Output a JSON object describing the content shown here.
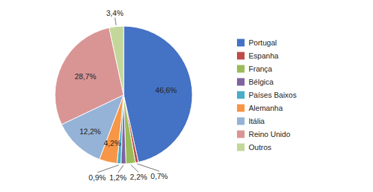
{
  "chart_data": {
    "type": "pie",
    "categories": [
      "Portugal",
      "Espanha",
      "França",
      "Bélgica",
      "Países Baixos",
      "Alemanha",
      "Itália",
      "Reino Unido",
      "Outros"
    ],
    "values": [
      46.6,
      0.7,
      2.2,
      1.2,
      0.9,
      4.2,
      12.2,
      28.7,
      3.4
    ],
    "value_labels": [
      "46,6%",
      "0,7%",
      "2,2%",
      "1,2%",
      "0,9%",
      "4,2%",
      "12,2%",
      "28,7%",
      "3,4%"
    ],
    "colors": [
      "#4472c4",
      "#be4b48",
      "#9bbb59",
      "#8064a2",
      "#4bacc6",
      "#f79646",
      "#95b3d7",
      "#d99594",
      "#c4d79b"
    ],
    "data_labels": true,
    "legend": "right"
  }
}
